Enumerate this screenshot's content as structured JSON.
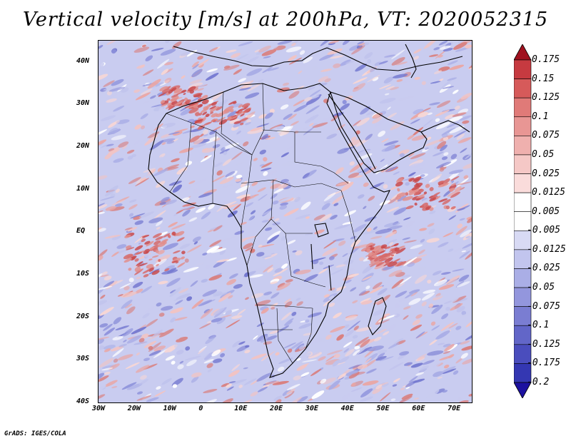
{
  "title": "Vertical velocity [m/s] at 200hPa, VT: 2020052315",
  "credit": "GrADS: IGES/COLA",
  "map": {
    "lon_range": [
      -30,
      75
    ],
    "lat_range": [
      -40,
      45
    ],
    "lon_ticks": [
      "30W",
      "20W",
      "10W",
      "0",
      "10E",
      "20E",
      "30E",
      "40E",
      "50E",
      "60E",
      "70E"
    ],
    "lat_ticks": [
      "40N",
      "30N",
      "20N",
      "10N",
      "EQ",
      "10S",
      "20S",
      "30S",
      "40S"
    ]
  },
  "colorbar": {
    "levels": [
      "0.175",
      "0.15",
      "0.125",
      "0.1",
      "0.075",
      "0.05",
      "0.025",
      "0.0125",
      "0.005",
      "-0.005",
      "-0.0125",
      "-0.025",
      "-0.05",
      "-0.075",
      "-0.1",
      "-0.125",
      "-0.175",
      "-0.2"
    ],
    "colors": [
      "#b2182b",
      "#c63a40",
      "#d65a5a",
      "#e07a78",
      "#e89694",
      "#efb0ae",
      "#f5c8c6",
      "#fadcdb",
      "#ffffff",
      "#ffffff",
      "#d8daf4",
      "#c2c5ee",
      "#aaaee6",
      "#9396dd",
      "#7a7dd2",
      "#6266c8",
      "#4a4dbd",
      "#3437b2",
      "#1f22a6"
    ],
    "top_arrow_color": "#a0111f",
    "bottom_arrow_color": "#1c11a0"
  }
}
